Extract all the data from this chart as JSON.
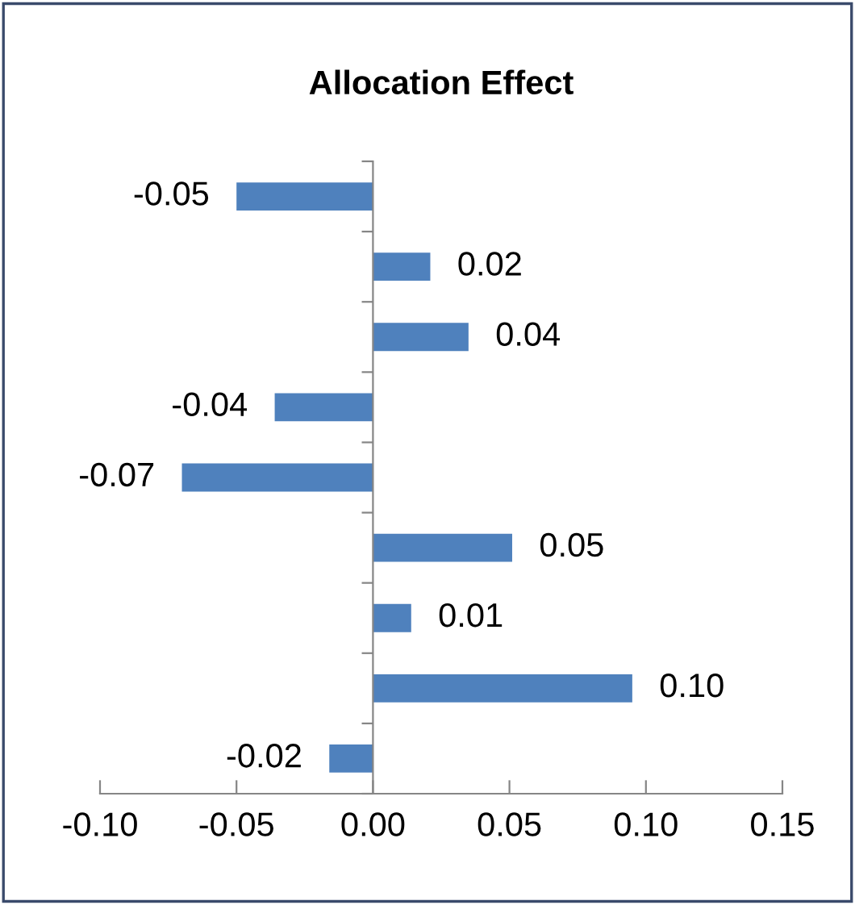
{
  "chart_data": {
    "type": "bar",
    "orientation": "horizontal",
    "title": "Allocation Effect",
    "categories": [
      null,
      null,
      null,
      null,
      null,
      null,
      null,
      null,
      null
    ],
    "values": [
      -0.05,
      0.021,
      0.035,
      -0.036,
      -0.07,
      0.051,
      0.014,
      0.095,
      -0.016
    ],
    "value_labels": [
      "-0.05",
      "0.02",
      "0.04",
      "-0.04",
      "-0.07",
      "0.05",
      "0.01",
      "0.10",
      "-0.02"
    ],
    "color": "#4f81bd",
    "xlim": [
      -0.1,
      0.15
    ],
    "xticks": [
      {
        "value": -0.1,
        "label": "-0.10"
      },
      {
        "value": -0.05,
        "label": "-0.05"
      },
      {
        "value": 0.0,
        "label": "0.00"
      },
      {
        "value": 0.05,
        "label": "0.05"
      },
      {
        "value": 0.1,
        "label": "0.10"
      },
      {
        "value": 0.15,
        "label": "0.15"
      }
    ],
    "tick_labels": "x"
  }
}
